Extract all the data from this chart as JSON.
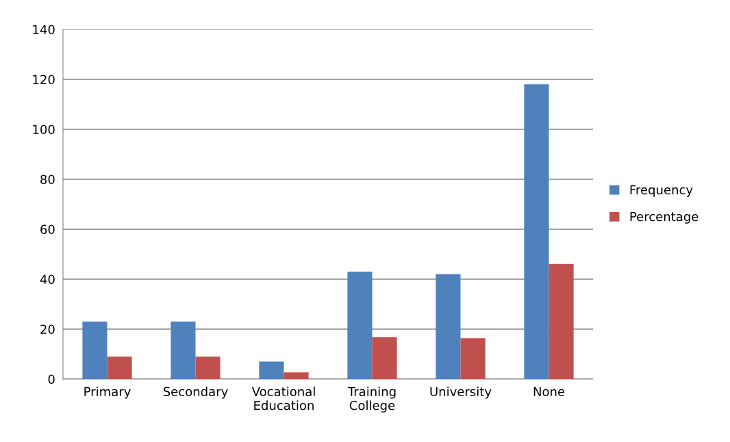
{
  "chart_data": {
    "type": "bar",
    "categories": [
      "Primary",
      "Secondary",
      "Vocational\nEducation",
      "Training\nCollege",
      "University",
      "None"
    ],
    "series": [
      {
        "name": "Frequency",
        "color": "#4f81bd",
        "values": [
          23,
          23,
          7,
          43,
          42,
          118
        ]
      },
      {
        "name": "Percentage",
        "color": "#c0504d",
        "values": [
          9.0,
          9.0,
          2.7,
          16.8,
          16.4,
          46.1
        ]
      }
    ],
    "ylim": [
      0,
      140
    ],
    "yticks": [
      0,
      20,
      40,
      60,
      80,
      100,
      120,
      140
    ],
    "grid": "y",
    "legend": "right"
  }
}
